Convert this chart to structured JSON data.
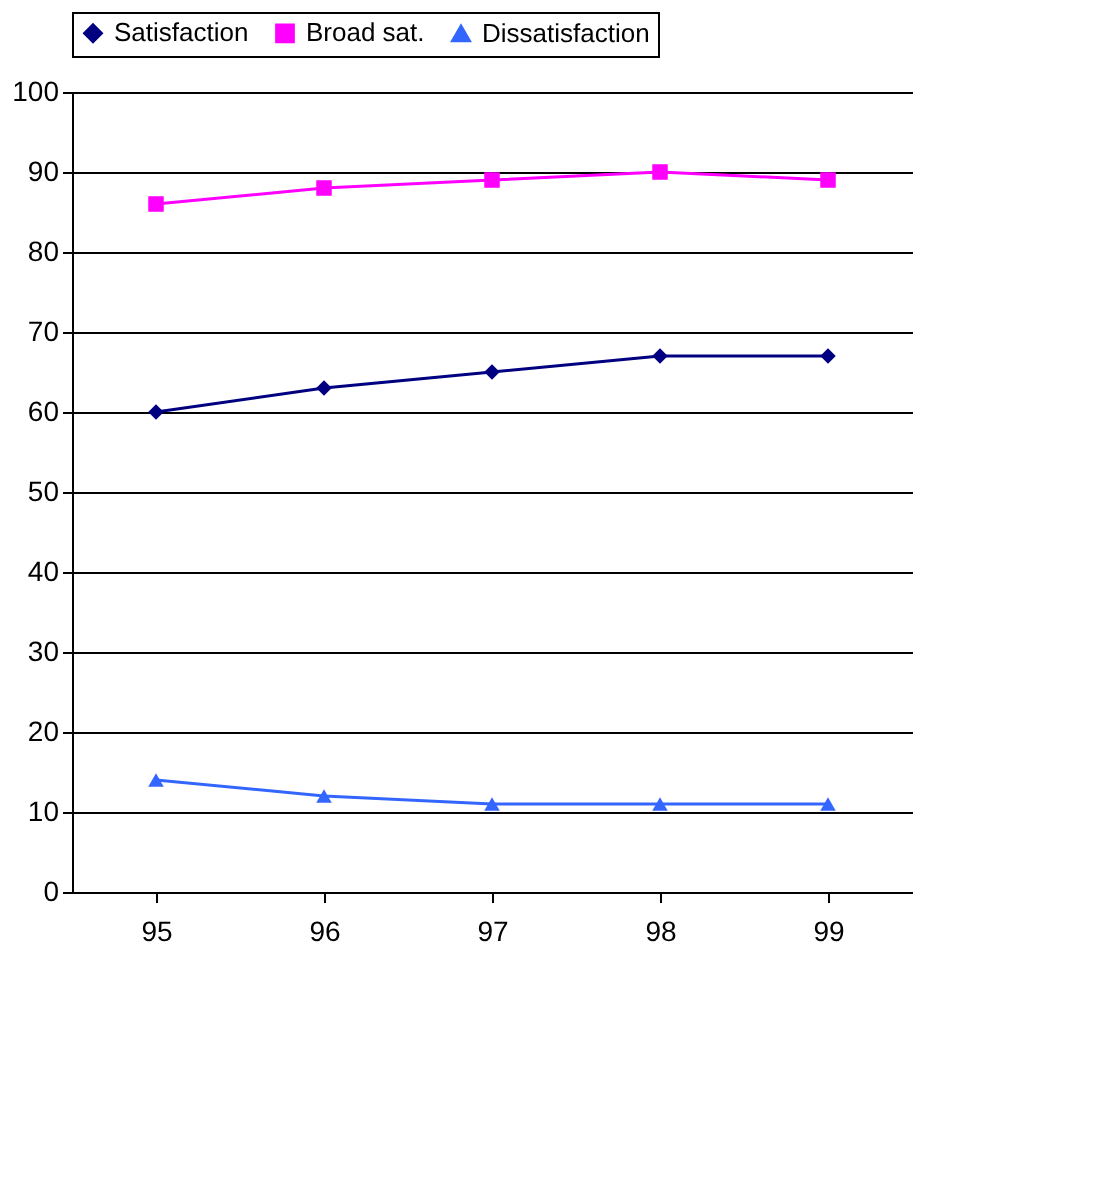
{
  "chart_data": {
    "type": "line",
    "categories": [
      "95",
      "96",
      "97",
      "98",
      "99"
    ],
    "series": [
      {
        "name": "Satisfaction",
        "color": "#000080",
        "marker": "diamond",
        "values": [
          60,
          63,
          65,
          67,
          67
        ]
      },
      {
        "name": "Broad sat.",
        "color": "#ff00ff",
        "marker": "square",
        "values": [
          86,
          88,
          89,
          90,
          89
        ]
      },
      {
        "name": "Dissatisfaction",
        "color": "#3366ff",
        "marker": "triangle",
        "values": [
          14,
          12,
          11,
          11,
          11
        ]
      }
    ],
    "ylim": [
      0,
      100
    ],
    "yticks": [
      0,
      10,
      20,
      30,
      40,
      50,
      60,
      70,
      80,
      90,
      100
    ],
    "grid": "y",
    "legend": "top"
  }
}
